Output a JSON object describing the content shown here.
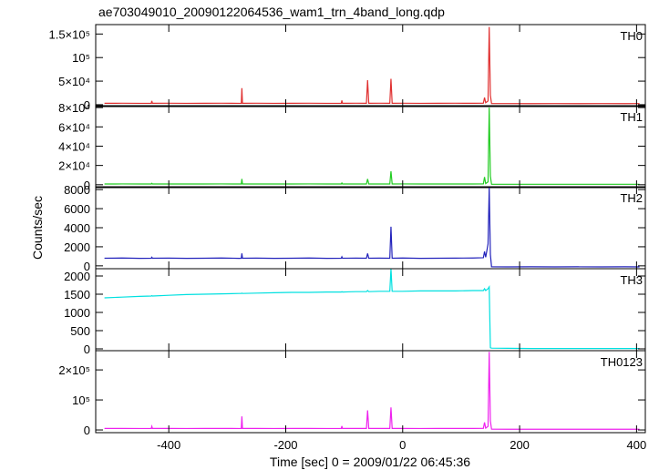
{
  "title": "ae703049010_20090122064536_wam1_trn_4band_long.qdp",
  "ylabel": "Counts/sec",
  "xlabel": "Time [sec] 0 = 2009/01/22 06:45:36",
  "xlim": [
    -525,
    415
  ],
  "xticks": [
    -400,
    -200,
    0,
    200,
    400
  ],
  "chart_data": [
    {
      "type": "line",
      "label": "TH0",
      "color": "#e03030",
      "x": [
        -510,
        -480,
        -450,
        -430,
        -429,
        -428,
        -400,
        -370,
        -340,
        -310,
        -280,
        -276,
        -275,
        -274,
        -250,
        -220,
        -190,
        -160,
        -130,
        -105,
        -104,
        -103,
        -80,
        -62,
        -60,
        -58,
        -40,
        -22,
        -20,
        -18,
        0,
        30,
        60,
        90,
        120,
        138,
        140,
        142,
        146,
        148,
        150,
        152,
        180,
        220,
        260,
        300,
        340,
        380,
        405
      ],
      "values": [
        3000,
        3100,
        2900,
        3000,
        8000,
        3000,
        3100,
        2900,
        3000,
        3100,
        2900,
        3000,
        35000,
        3000,
        3100,
        2900,
        3000,
        3100,
        2900,
        3000,
        9000,
        3000,
        3100,
        3000,
        52000,
        3000,
        3100,
        3000,
        55000,
        3000,
        3100,
        2900,
        3000,
        3100,
        3000,
        3200,
        15000,
        4000,
        8000,
        165000,
        20000,
        2500,
        2400,
        2300,
        2400,
        2300,
        2400,
        2300,
        2400
      ],
      "ylim": [
        -4000,
        170000
      ],
      "yticks": [
        {
          "value": 0,
          "label": "0"
        },
        {
          "value": 50000,
          "label": "5×10⁴"
        },
        {
          "value": 100000,
          "label": "10⁵"
        },
        {
          "value": 150000,
          "label": "1.5×10⁵"
        }
      ]
    },
    {
      "type": "line",
      "label": "TH1",
      "color": "#22cc22",
      "x": [
        -510,
        -480,
        -450,
        -430,
        -429,
        -428,
        -400,
        -370,
        -340,
        -310,
        -280,
        -276,
        -275,
        -274,
        -250,
        -220,
        -190,
        -160,
        -130,
        -105,
        -104,
        -103,
        -80,
        -62,
        -60,
        -58,
        -40,
        -22,
        -20,
        -18,
        0,
        30,
        60,
        90,
        120,
        138,
        140,
        142,
        146,
        148,
        150,
        152,
        180,
        220,
        260,
        300,
        340,
        380,
        405
      ],
      "values": [
        800,
        820,
        790,
        800,
        1500,
        800,
        810,
        790,
        800,
        820,
        790,
        800,
        6000,
        800,
        810,
        790,
        800,
        820,
        790,
        800,
        1800,
        800,
        810,
        800,
        6000,
        800,
        810,
        800,
        14000,
        800,
        820,
        790,
        800,
        810,
        800,
        900,
        8000,
        1200,
        3000,
        80000,
        9000,
        500,
        480,
        470,
        480,
        470,
        480,
        470,
        480
      ],
      "ylim": [
        -3000,
        82000
      ],
      "yticks": [
        0,
        {
          "value": 20000,
          "label": "2×10⁴"
        },
        {
          "value": 40000,
          "label": "4×10⁴"
        },
        {
          "value": 60000,
          "label": "6×10⁴"
        },
        {
          "value": 80000,
          "label": "8×10⁴"
        }
      ]
    },
    {
      "type": "line",
      "label": "TH2",
      "color": "#2222bb",
      "x": [
        -510,
        -480,
        -450,
        -430,
        -429,
        -428,
        -400,
        -370,
        -340,
        -310,
        -280,
        -276,
        -275,
        -274,
        -250,
        -220,
        -190,
        -160,
        -130,
        -105,
        -104,
        -103,
        -80,
        -62,
        -60,
        -58,
        -40,
        -22,
        -20,
        -18,
        0,
        30,
        60,
        90,
        120,
        138,
        140,
        142,
        146,
        148,
        150,
        152,
        180,
        220,
        260,
        300,
        340,
        380,
        405
      ],
      "values": [
        800,
        820,
        790,
        800,
        900,
        800,
        810,
        790,
        800,
        820,
        790,
        800,
        1300,
        800,
        810,
        790,
        800,
        820,
        790,
        800,
        950,
        800,
        810,
        800,
        1300,
        800,
        810,
        800,
        4100,
        800,
        820,
        790,
        800,
        810,
        820,
        850,
        1500,
        900,
        2300,
        8200,
        1200,
        -100,
        -110,
        -100,
        -110,
        -100,
        -110,
        -100,
        -110
      ],
      "ylim": [
        -300,
        8300
      ],
      "yticks": [
        0,
        2000,
        4000,
        6000,
        8000
      ]
    },
    {
      "type": "line",
      "label": "TH3",
      "color": "#00e0e0",
      "x": [
        -510,
        -480,
        -450,
        -430,
        -429,
        -428,
        -400,
        -370,
        -340,
        -310,
        -280,
        -276,
        -275,
        -274,
        -250,
        -220,
        -190,
        -160,
        -130,
        -105,
        -104,
        -103,
        -80,
        -62,
        -60,
        -58,
        -40,
        -22,
        -20,
        -18,
        0,
        30,
        60,
        90,
        120,
        138,
        140,
        142,
        146,
        148,
        150,
        152,
        180,
        220,
        260,
        300,
        340,
        380,
        405
      ],
      "values": [
        1400,
        1420,
        1440,
        1450,
        1460,
        1450,
        1470,
        1490,
        1500,
        1510,
        1520,
        1520,
        1530,
        1520,
        1530,
        1540,
        1550,
        1550,
        1560,
        1560,
        1570,
        1560,
        1570,
        1570,
        1600,
        1570,
        1580,
        1580,
        2200,
        1580,
        1580,
        1590,
        1590,
        1590,
        1600,
        1600,
        1650,
        1600,
        1650,
        1700,
        30,
        20,
        15,
        10,
        10,
        10,
        10,
        10,
        10
      ],
      "ylim": [
        -50,
        2200
      ],
      "yticks": [
        0,
        500,
        1000,
        1500,
        2000
      ]
    },
    {
      "type": "line",
      "label": "TH0123",
      "color": "#ee22ee",
      "x": [
        -510,
        -480,
        -450,
        -430,
        -429,
        -428,
        -400,
        -370,
        -340,
        -310,
        -280,
        -276,
        -275,
        -274,
        -250,
        -220,
        -190,
        -160,
        -130,
        -105,
        -104,
        -103,
        -80,
        -62,
        -60,
        -58,
        -40,
        -22,
        -20,
        -18,
        0,
        30,
        60,
        90,
        120,
        138,
        140,
        142,
        146,
        148,
        150,
        152,
        180,
        220,
        260,
        300,
        340,
        380,
        405
      ],
      "values": [
        5000,
        5100,
        4900,
        5000,
        12000,
        5000,
        5100,
        4900,
        5000,
        5100,
        4900,
        5000,
        45000,
        5000,
        5100,
        4900,
        5000,
        5100,
        4900,
        5000,
        13000,
        5000,
        5100,
        5000,
        65000,
        5000,
        5100,
        5000,
        75000,
        5000,
        5100,
        4900,
        5000,
        5100,
        5000,
        5300,
        25000,
        6000,
        12000,
        260000,
        30000,
        2500,
        2400,
        2300,
        2400,
        2300,
        2400,
        2300,
        2400
      ],
      "ylim": [
        -9000,
        264000
      ],
      "yticks": [
        0,
        {
          "value": 100000,
          "label": "10⁵"
        },
        {
          "value": 200000,
          "label": "2×10⁵"
        }
      ]
    }
  ]
}
